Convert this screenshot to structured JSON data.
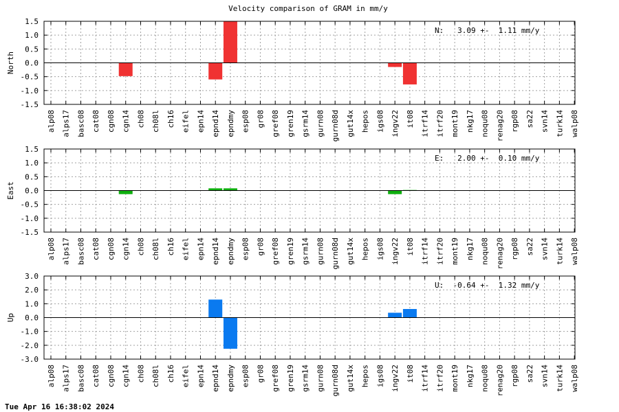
{
  "title": "Velocity comparison of GRAM in mm/y",
  "timestamp": "Tue Apr 16 16:38:02 2024",
  "chart_data": [
    {
      "type": "bar",
      "ylabel": "North",
      "ylim": [
        -1.5,
        1.5
      ],
      "yticks": [
        -1.5,
        -1.0,
        -0.5,
        0.0,
        0.5,
        1.0,
        1.5
      ],
      "ytick_labels": [
        "-1.5",
        "-1.0",
        "-0.5",
        "0.0",
        "0.5",
        "1.0",
        "1.5"
      ],
      "color": "#f03232",
      "annotation": "N:   3.09 +-  1.11 mm/y",
      "grid": true,
      "categories": [
        "alp08",
        "alps17",
        "basc08",
        "cat08",
        "cgn08",
        "cgn14",
        "ch08",
        "ch08l",
        "ch16",
        "eifel",
        "epn14",
        "epnd14",
        "epndmy",
        "esp08",
        "gr08",
        "gref08",
        "gren19",
        "gsrm14",
        "gurn08",
        "gurn08d",
        "gut14x",
        "hepos",
        "igs08",
        "ingv22",
        "it08",
        "itrf14",
        "itrf20",
        "mont19",
        "nkg17",
        "noqu08",
        "renag20",
        "rgp08",
        "sa22",
        "svn14",
        "turk14",
        "walp08"
      ],
      "values": [
        0,
        0,
        0,
        0,
        0,
        -0.48,
        0,
        0,
        0,
        0,
        0,
        -0.6,
        1.5,
        0,
        0,
        0,
        0,
        0,
        0,
        0,
        0,
        0,
        0,
        -0.15,
        -0.78,
        0,
        0,
        0,
        0,
        0,
        0,
        0,
        0,
        0,
        0,
        0
      ]
    },
    {
      "type": "bar",
      "ylabel": "East",
      "ylim": [
        -1.5,
        1.5
      ],
      "yticks": [
        -1.5,
        -1.0,
        -0.5,
        0.0,
        0.5,
        1.0,
        1.5
      ],
      "ytick_labels": [
        "-1.5",
        "-1.0",
        "-0.5",
        "0.0",
        "0.5",
        "1.0",
        "1.5"
      ],
      "color": "#10b010",
      "annotation": "E:   2.00 +-  0.10 mm/y",
      "grid": true,
      "categories": [
        "alp08",
        "alps17",
        "basc08",
        "cat08",
        "cgn08",
        "cgn14",
        "ch08",
        "ch08l",
        "ch16",
        "eifel",
        "epn14",
        "epnd14",
        "epndmy",
        "esp08",
        "gr08",
        "gref08",
        "gren19",
        "gsrm14",
        "gurn08",
        "gurn08d",
        "gut14x",
        "hepos",
        "igs08",
        "ingv22",
        "it08",
        "itrf14",
        "itrf20",
        "mont19",
        "nkg17",
        "noqu08",
        "renag20",
        "rgp08",
        "sa22",
        "svn14",
        "turk14",
        "walp08"
      ],
      "values": [
        0,
        0,
        0,
        0,
        0,
        -0.13,
        0,
        0,
        0,
        0,
        0,
        0.08,
        0.08,
        0,
        0,
        0,
        0,
        0,
        0,
        0,
        0,
        0,
        0,
        -0.13,
        0.02,
        0,
        0,
        0,
        0,
        0,
        0,
        0,
        0,
        0,
        0,
        0
      ]
    },
    {
      "type": "bar",
      "ylabel": "Up",
      "ylim": [
        -3.0,
        3.0
      ],
      "yticks": [
        -3.0,
        -2.0,
        -1.0,
        0.0,
        1.0,
        2.0,
        3.0
      ],
      "ytick_labels": [
        "-3.0",
        "-2.0",
        "-1.0",
        "0.0",
        "1.0",
        "2.0",
        "3.0"
      ],
      "color": "#0a7af0",
      "annotation": "U:  -0.64 +-  1.32 mm/y",
      "grid": true,
      "categories": [
        "alp08",
        "alps17",
        "basc08",
        "cat08",
        "cgn08",
        "cgn14",
        "ch08",
        "ch08l",
        "ch16",
        "eifel",
        "epn14",
        "epnd14",
        "epndmy",
        "esp08",
        "gr08",
        "gref08",
        "gren19",
        "gsrm14",
        "gurn08",
        "gurn08d",
        "gut14x",
        "hepos",
        "igs08",
        "ingv22",
        "it08",
        "itrf14",
        "itrf20",
        "mont19",
        "nkg17",
        "noqu08",
        "renag20",
        "rgp08",
        "sa22",
        "svn14",
        "turk14",
        "walp08"
      ],
      "values": [
        0,
        0,
        0,
        0,
        0,
        0,
        0,
        0,
        0,
        0,
        0,
        1.3,
        -2.25,
        0,
        0,
        0,
        0,
        0,
        0,
        0,
        0,
        0,
        0,
        0.35,
        0.62,
        0,
        0,
        0,
        0,
        0,
        0,
        0,
        0,
        0,
        0,
        0
      ]
    }
  ]
}
